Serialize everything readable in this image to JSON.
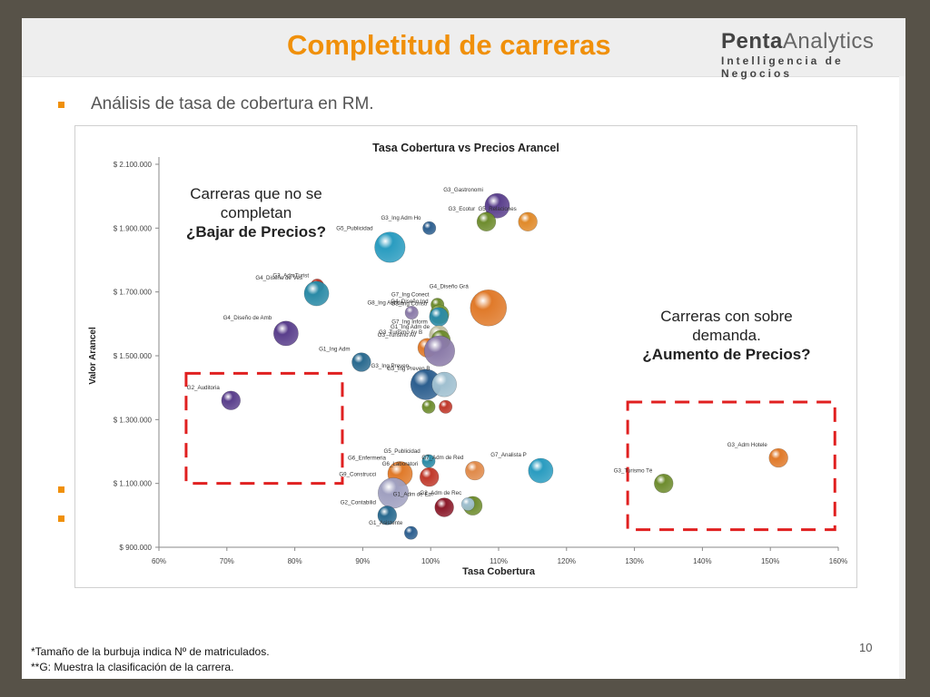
{
  "header": {
    "title": "Completitud de carreras",
    "logo_strong": "Penta",
    "logo_light": "Analytics",
    "logo_sub": "Intelligencia de Negocios"
  },
  "subtitle": "Análisis de tasa de cobertura en RM.",
  "callouts": {
    "left_line1": "Carreras que no se",
    "left_line2": "completan",
    "left_line3": "¿Bajar de Precios?",
    "right_line1": "Carreras con sobre",
    "right_line2": "demanda.",
    "right_line3": "¿Aumento de Precios?"
  },
  "footnotes": {
    "line1": "*Tamaño de la burbuja indica Nº de matriculados.",
    "line2": "**G: Muestra la clasificación de la carrera."
  },
  "page_number": "10",
  "colors": {
    "accent": "#f0900a",
    "dashed_box": "#e02020"
  },
  "chart_data": {
    "type": "scatter",
    "bubble": true,
    "title": "Tasa Cobertura vs Precios Arancel",
    "xlabel": "Tasa Cobertura",
    "ylabel": "Valor Arancel",
    "xlim": [
      0.6,
      1.6
    ],
    "ylim": [
      900000,
      2100000
    ],
    "x_ticks": [
      0.6,
      0.7,
      0.8,
      0.9,
      1.0,
      1.1,
      1.2,
      1.3,
      1.4,
      1.5,
      1.6
    ],
    "x_tick_labels": [
      "60%",
      "70%",
      "80%",
      "90%",
      "100%",
      "110%",
      "120%",
      "130%",
      "140%",
      "150%",
      "160%"
    ],
    "y_ticks": [
      900000,
      1100000,
      1300000,
      1500000,
      1700000,
      1900000,
      2100000
    ],
    "y_tick_labels": [
      "$ 900.000",
      "$ 1.100.000",
      "$ 1.300.000",
      "$ 1.500.000",
      "$ 1.700.000",
      "$ 1.900.000",
      "$ 2.100.000"
    ],
    "grid": false,
    "points": [
      {
        "label": "G3_Gastronomi",
        "x": 1.098,
        "y": 1970000,
        "size": 3,
        "color": "#5a3f8c"
      },
      {
        "label": "G3_Ecotur",
        "x": 1.082,
        "y": 1920000,
        "size": 2,
        "color": "#6e8c2e"
      },
      {
        "label": "G5_Relaciones",
        "x": 1.143,
        "y": 1920000,
        "size": 2,
        "color": "#e08a2a"
      },
      {
        "label": "G3_Ing Adm Ho",
        "x": 0.998,
        "y": 1900000,
        "size": 1,
        "color": "#2d5f8f"
      },
      {
        "label": "G5_Publicidad",
        "x": 0.94,
        "y": 1840000,
        "size": 4,
        "color": "#2a9cc0"
      },
      {
        "label": "G3_AdmTurist",
        "x": 0.833,
        "y": 1720000,
        "size": 1,
        "color": "#c0392b"
      },
      {
        "label": "G4_Diseño de Ves",
        "x": 0.832,
        "y": 1695000,
        "size": 3,
        "color": "#2a8aa6"
      },
      {
        "label": "G7_Ing Conect",
        "x": 1.01,
        "y": 1660000,
        "size": 1,
        "color": "#6e8c2e"
      },
      {
        "label": "G4_Diseño Grá",
        "x": 1.085,
        "y": 1650000,
        "size": 5,
        "color": "#e07a2a"
      },
      {
        "label": "G4_Diseño Ind",
        "x": 1.013,
        "y": 1630000,
        "size": 2,
        "color": "#7a9a3a"
      },
      {
        "label": "G8_Ing Aut de",
        "x": 0.972,
        "y": 1635000,
        "size": 1,
        "color": "#8a7aa8"
      },
      {
        "label": "G8_Ing Constr",
        "x": 1.012,
        "y": 1622000,
        "size": 2,
        "color": "#2a8aa6"
      },
      {
        "label": "G4_Diseño de Amb",
        "x": 0.787,
        "y": 1570000,
        "size": 3,
        "color": "#5a3f8c"
      },
      {
        "label": "G7_Ing Inform",
        "x": 1.012,
        "y": 1565000,
        "size": 2,
        "color": "#c0c0a0"
      },
      {
        "label": "G1_Ing Adm de",
        "x": 1.015,
        "y": 1550000,
        "size": 2,
        "color": "#6e8c2e"
      },
      {
        "label": "G1_Ing Adm",
        "x": 0.898,
        "y": 1480000,
        "size": 2,
        "color": "#2a6a8f"
      },
      {
        "label": "G3_Turismo Av",
        "x": 0.995,
        "y": 1525000,
        "size": 2,
        "color": "#e07a2a"
      },
      {
        "label": "G3_Turismo Av B",
        "x": 1.013,
        "y": 1515000,
        "size": 4,
        "color": "#8a7aa8"
      },
      {
        "label": "G3_Ing Preven",
        "x": 0.993,
        "y": 1410000,
        "size": 4,
        "color": "#2d5f8f"
      },
      {
        "label": "G3_Ing Preven B",
        "x": 1.02,
        "y": 1410000,
        "size": 3,
        "color": "#a0c0d0"
      },
      {
        "label": "G2_Auditoria",
        "x": 0.706,
        "y": 1360000,
        "size": 2,
        "color": "#5a3f8c"
      },
      {
        "label": "",
        "x": 0.997,
        "y": 1340000,
        "size": 1,
        "color": "#6e8c2e"
      },
      {
        "label": "",
        "x": 1.022,
        "y": 1340000,
        "size": 1,
        "color": "#c0392b"
      },
      {
        "label": "G5_Publicidad",
        "x": 0.997,
        "y": 1170000,
        "size": 1,
        "color": "#2a8aa6"
      },
      {
        "label": "G6_Enfermeria",
        "x": 0.955,
        "y": 1130000,
        "size": 3,
        "color": "#e07a2a"
      },
      {
        "label": "G6_Laboratori",
        "x": 0.998,
        "y": 1120000,
        "size": 2,
        "color": "#c0392b"
      },
      {
        "label": "G7_Adm de Red",
        "x": 1.065,
        "y": 1140000,
        "size": 2,
        "color": "#e08a4a"
      },
      {
        "label": "G7_Analista P",
        "x": 1.162,
        "y": 1140000,
        "size": 3,
        "color": "#2a9cc0"
      },
      {
        "label": "G9_Construcci",
        "x": 0.945,
        "y": 1070000,
        "size": 4,
        "color": "#a0a0c0"
      },
      {
        "label": "G2_Contabilid",
        "x": 0.936,
        "y": 1000000,
        "size": 2,
        "color": "#2a6a8f"
      },
      {
        "label": "G1_Adm de Em",
        "x": 1.02,
        "y": 1025000,
        "size": 2,
        "color": "#8b1a2a"
      },
      {
        "label": "G2_Adm de Rec",
        "x": 1.062,
        "y": 1030000,
        "size": 2,
        "color": "#6e8c2e"
      },
      {
        "label": "",
        "x": 1.055,
        "y": 1035000,
        "size": 1,
        "color": "#a0c0d0"
      },
      {
        "label": "G1_Asistente",
        "x": 0.971,
        "y": 945000,
        "size": 1,
        "color": "#2d5f8f"
      },
      {
        "label": "G3_Adm Hotele",
        "x": 1.512,
        "y": 1180000,
        "size": 2,
        "color": "#e07a2a"
      },
      {
        "label": "G3_Turismo Té",
        "x": 1.343,
        "y": 1100000,
        "size": 2,
        "color": "#6e8c2e"
      }
    ],
    "highlight_boxes": [
      {
        "name": "low-coverage",
        "x_range": [
          0.64,
          0.87
        ],
        "y_range": [
          1100000,
          1445000
        ]
      },
      {
        "name": "over-demand",
        "x_range": [
          1.29,
          1.595
        ],
        "y_range": [
          955000,
          1355000
        ]
      }
    ]
  }
}
